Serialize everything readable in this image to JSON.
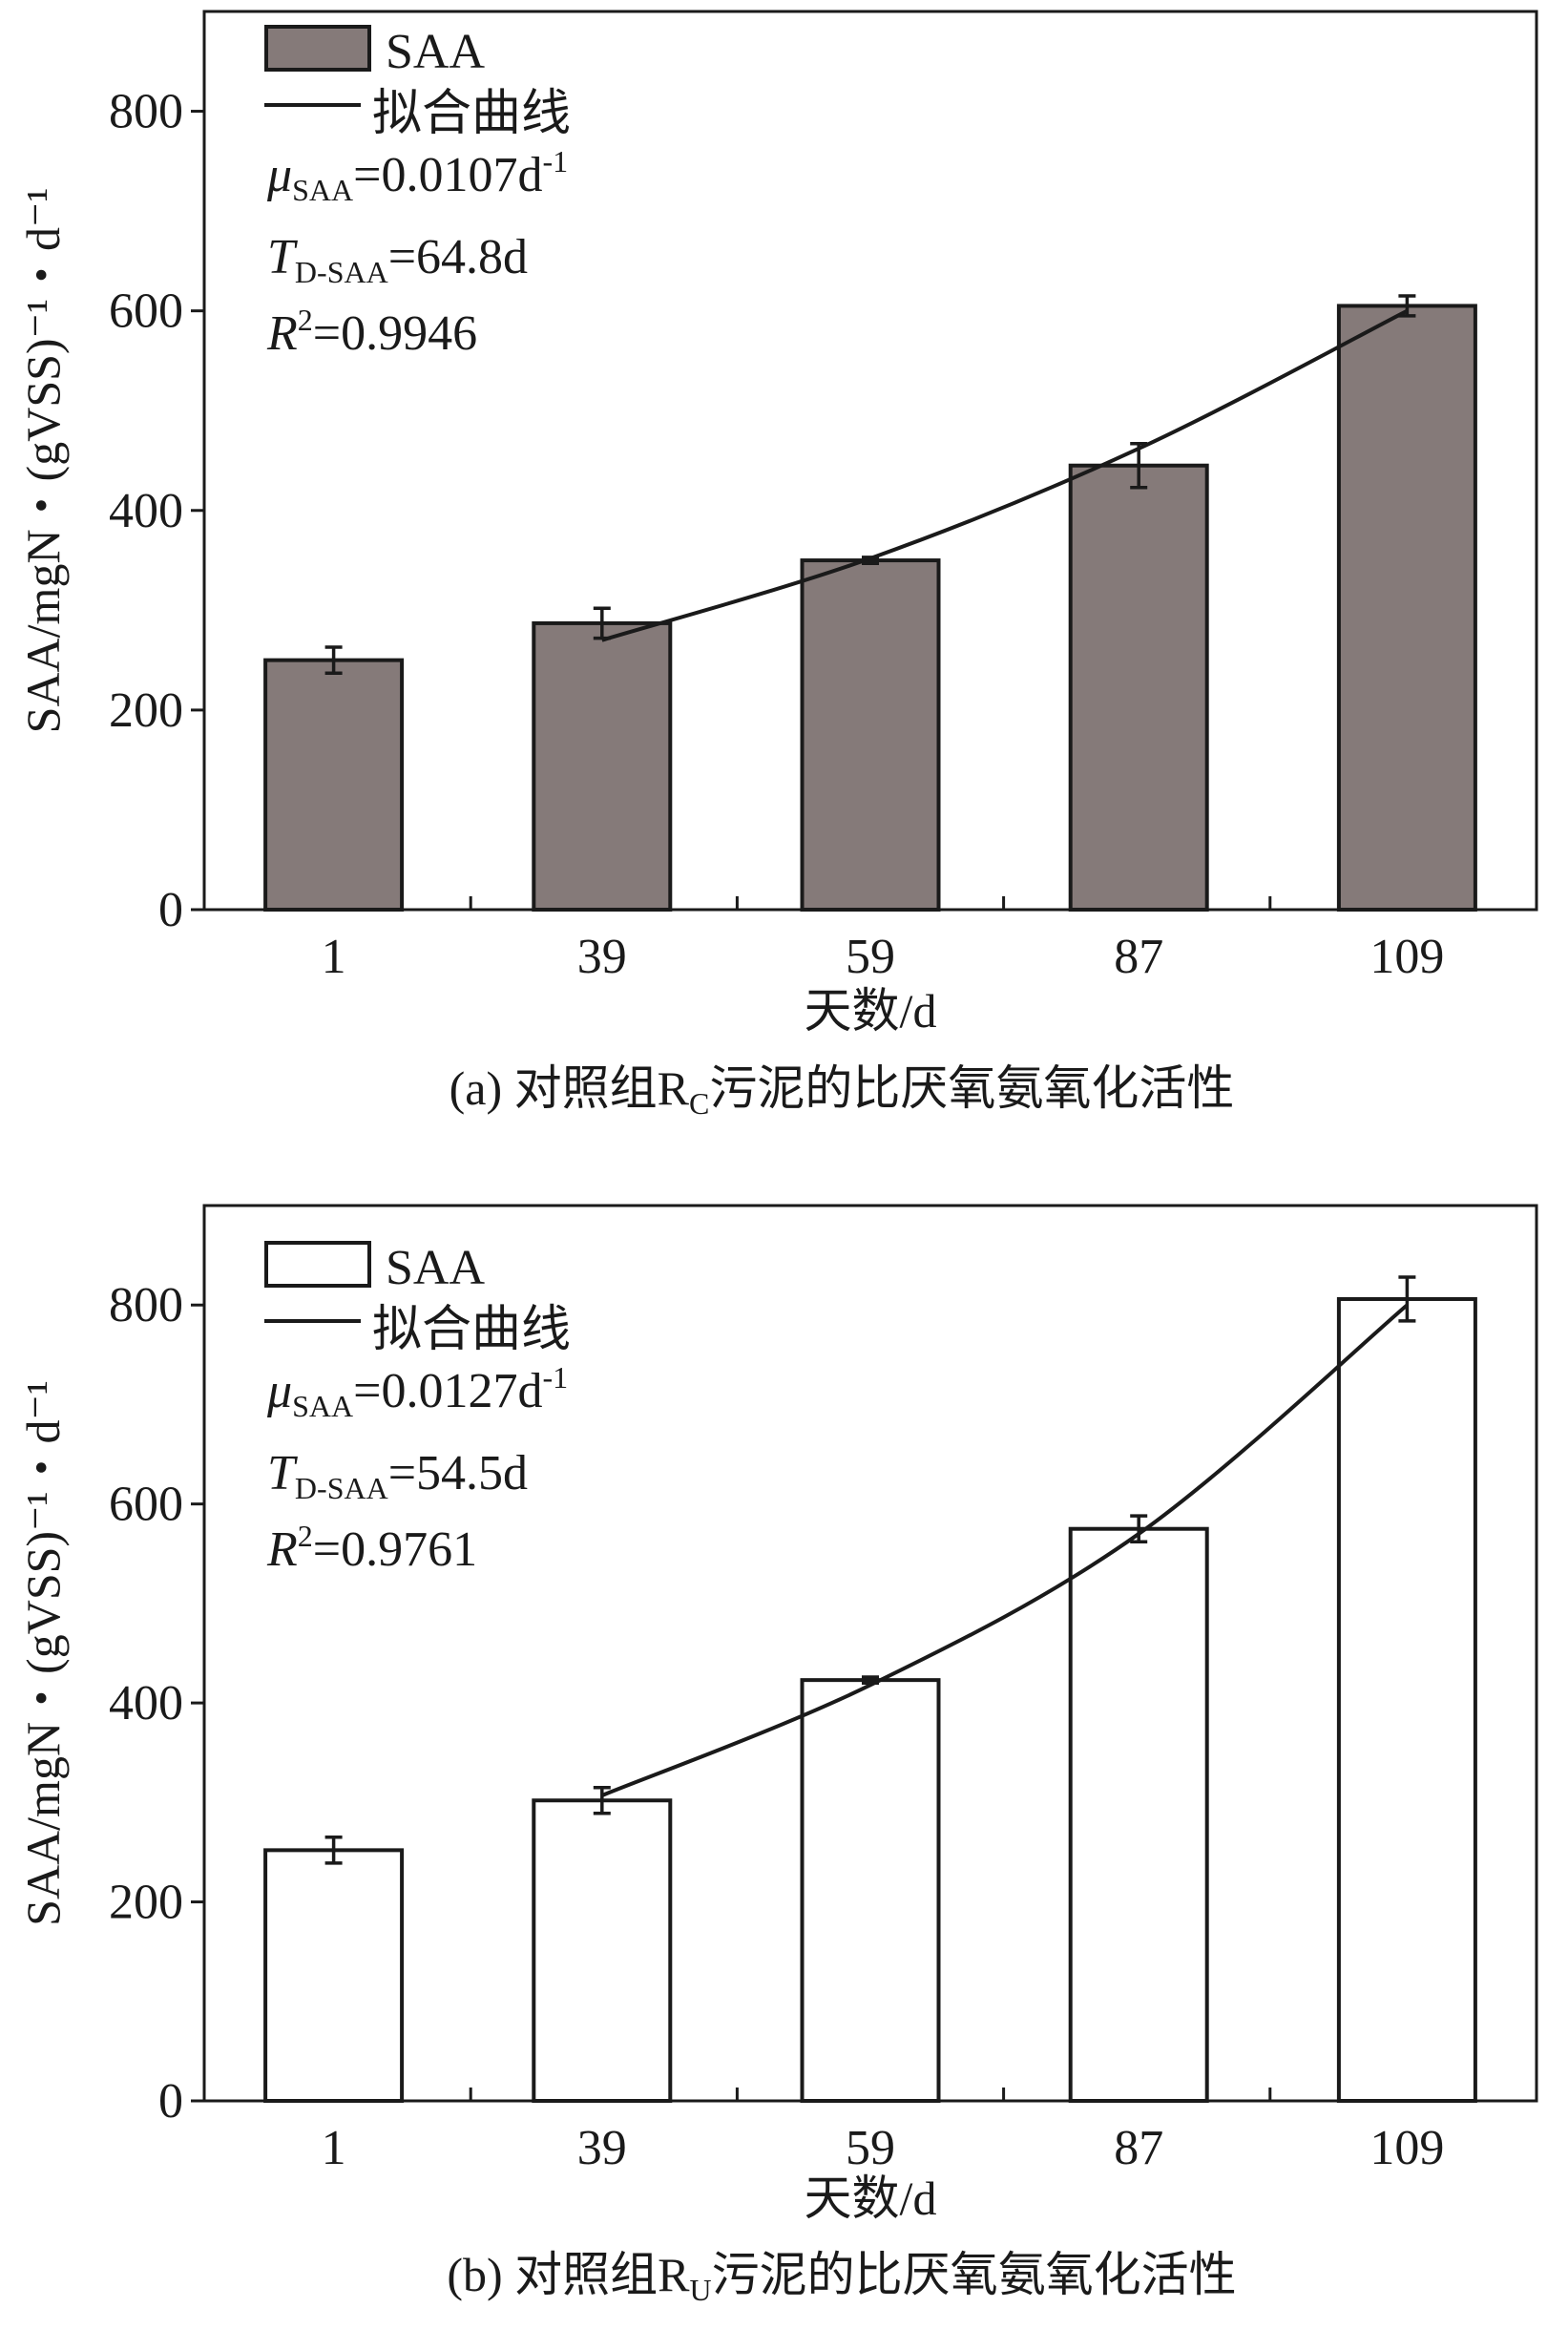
{
  "chart_data": [
    {
      "type": "bar",
      "panel": "a",
      "caption": "(a) 对照组R",
      "caption_sub": "C",
      "caption_rest": "污泥的比厌氧氨氧化活性",
      "xlabel": "天数/d",
      "ylabel": "SAA/mgN・(gVSS)⁻¹・d⁻¹",
      "categories": [
        "1",
        "39",
        "59",
        "87",
        "109"
      ],
      "values": [
        250,
        287,
        350,
        445,
        605
      ],
      "errors": [
        13,
        15,
        3,
        22,
        10
      ],
      "ylim": [
        0,
        900
      ],
      "yticks": [
        0,
        200,
        400,
        600,
        800
      ],
      "bar_color": "#857a79",
      "fit_curve": {
        "x_categories": [
          "39",
          "59",
          "87",
          "109"
        ],
        "values": [
          270,
          352,
          462,
          600
        ]
      },
      "legend": {
        "placement": "top-left",
        "bar_label": "SAA",
        "line_label": "拟合曲线"
      },
      "annotations": {
        "mu_sym": "μ",
        "mu_sub": "SAA",
        "mu_val": "=0.0107d",
        "mu_sup": "-1",
        "t_sym": "T",
        "t_sub": "D-SAA",
        "t_val": "=64.8d",
        "r_sym": "R",
        "r_sup": "2",
        "r_val": "=0.9946"
      }
    },
    {
      "type": "bar",
      "panel": "b",
      "caption": "(b) 对照组R",
      "caption_sub": "U",
      "caption_rest": "污泥的比厌氧氨氧化活性",
      "xlabel": "天数/d",
      "ylabel": "SAA/mgN・(gVSS)⁻¹・d⁻¹",
      "categories": [
        "1",
        "39",
        "59",
        "87",
        "109"
      ],
      "values": [
        252,
        302,
        423,
        575,
        806
      ],
      "errors": [
        13,
        13,
        3,
        13,
        22
      ],
      "ylim": [
        0,
        900
      ],
      "yticks": [
        0,
        200,
        400,
        600,
        800
      ],
      "bar_color": "#ffffff",
      "fit_curve": {
        "x_categories": [
          "39",
          "59",
          "87",
          "109"
        ],
        "values": [
          307,
          418,
          570,
          800
        ]
      },
      "legend": {
        "placement": "top-left",
        "bar_label": "SAA",
        "line_label": "拟合曲线"
      },
      "annotations": {
        "mu_sym": "μ",
        "mu_sub": "SAA",
        "mu_val": "=0.0127d",
        "mu_sup": "-1",
        "t_sym": "T",
        "t_sub": "D-SAA",
        "t_val": "=54.5d",
        "r_sym": "R",
        "r_sup": "2",
        "r_val": "=0.9761"
      }
    }
  ]
}
